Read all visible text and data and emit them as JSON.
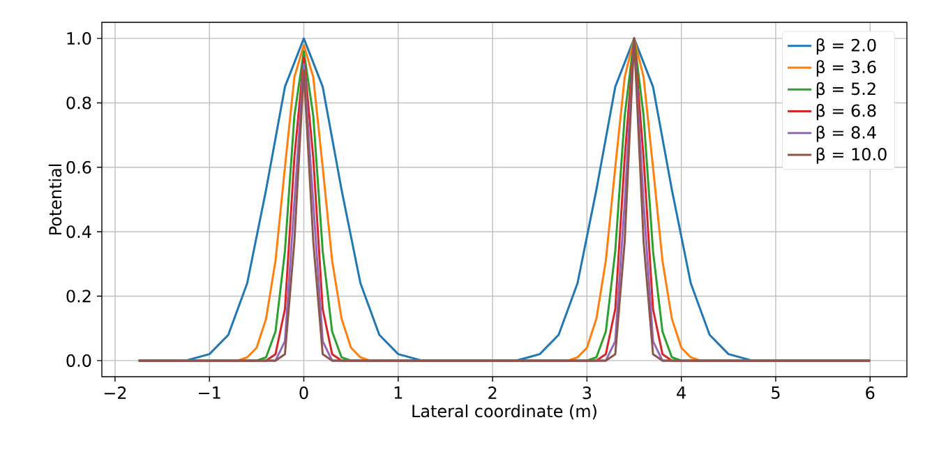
{
  "chart_data": {
    "type": "line",
    "xlabel": "Lateral coordinate (m)",
    "ylabel": "Potential",
    "xlim": [
      -2.14,
      6.39
    ],
    "ylim": [
      -0.05,
      1.05
    ],
    "xticks": [
      {
        "value": -2,
        "label": "−2"
      },
      {
        "value": -1,
        "label": "−1"
      },
      0,
      1,
      2,
      3,
      4,
      5,
      6
    ],
    "yticks": [
      {
        "value": 0,
        "label": "0.0"
      },
      {
        "value": 0.2,
        "label": "0.2"
      },
      {
        "value": 0.4,
        "label": "0.4"
      },
      {
        "value": 0.6,
        "label": "0.6"
      },
      {
        "value": 0.8,
        "label": "0.8"
      },
      {
        "value": 1.0,
        "label": "1.0"
      }
    ],
    "grid": true,
    "legend": "top right",
    "marker": "none",
    "line_style": "solid",
    "series": [
      {
        "name": "β = 2.0",
        "color": "#1f77b4",
        "x": [
          -1.75,
          -1.25,
          -1.0,
          -0.8,
          -0.6,
          -0.4,
          -0.2,
          0,
          0.2,
          0.4,
          0.6,
          0.8,
          1.0,
          1.25,
          2.25,
          2.5,
          2.7,
          2.9,
          3.1,
          3.3,
          3.5,
          3.7,
          3.9,
          4.1,
          4.3,
          4.5,
          4.75,
          6
        ],
        "values": [
          0,
          0,
          0.02,
          0.08,
          0.24,
          0.53,
          0.85,
          1.0,
          0.85,
          0.53,
          0.24,
          0.08,
          0.02,
          0,
          0,
          0.02,
          0.08,
          0.24,
          0.53,
          0.85,
          1.0,
          0.85,
          0.53,
          0.24,
          0.08,
          0.02,
          0,
          0
        ]
      },
      {
        "name": "β = 3.6",
        "color": "#ff7f0e",
        "x": [
          -1.75,
          -0.7,
          -0.6,
          -0.5,
          -0.4,
          -0.3,
          -0.2,
          -0.1,
          0,
          0.1,
          0.2,
          0.3,
          0.4,
          0.5,
          0.6,
          0.7,
          2.8,
          2.9,
          3.0,
          3.1,
          3.2,
          3.3,
          3.4,
          3.5,
          3.6,
          3.7,
          3.8,
          3.9,
          4.0,
          4.1,
          4.2,
          6
        ],
        "values": [
          0,
          0,
          0.01,
          0.04,
          0.13,
          0.31,
          0.6,
          0.88,
          0.98,
          0.88,
          0.6,
          0.31,
          0.13,
          0.04,
          0.01,
          0,
          0,
          0.01,
          0.04,
          0.13,
          0.31,
          0.6,
          0.88,
          1.0,
          0.88,
          0.6,
          0.31,
          0.13,
          0.04,
          0.01,
          0,
          0
        ]
      },
      {
        "name": "β = 5.2",
        "color": "#2ca02c",
        "x": [
          -1.75,
          -0.5,
          -0.4,
          -0.3,
          -0.2,
          -0.1,
          0,
          0.1,
          0.2,
          0.3,
          0.4,
          0.5,
          3.0,
          3.1,
          3.2,
          3.3,
          3.4,
          3.5,
          3.6,
          3.7,
          3.8,
          3.9,
          4.0,
          6
        ],
        "values": [
          0,
          0,
          0.01,
          0.09,
          0.34,
          0.76,
          0.96,
          0.76,
          0.34,
          0.09,
          0.01,
          0,
          0,
          0.01,
          0.09,
          0.34,
          0.76,
          1.0,
          0.76,
          0.34,
          0.09,
          0.01,
          0,
          0
        ]
      },
      {
        "name": "β = 6.8",
        "color": "#d62728",
        "x": [
          -1.75,
          -0.4,
          -0.3,
          -0.2,
          -0.1,
          0,
          0.1,
          0.2,
          0.3,
          0.4,
          3.1,
          3.2,
          3.3,
          3.4,
          3.5,
          3.6,
          3.7,
          3.8,
          3.9,
          6
        ],
        "values": [
          0,
          0,
          0.02,
          0.16,
          0.63,
          0.94,
          0.63,
          0.16,
          0.02,
          0,
          0,
          0.02,
          0.16,
          0.63,
          1.0,
          0.63,
          0.16,
          0.02,
          0,
          0
        ]
      },
      {
        "name": "β = 8.4",
        "color": "#9467bd",
        "x": [
          -1.75,
          -0.3,
          -0.2,
          -0.1,
          0,
          0.1,
          0.2,
          0.3,
          3.2,
          3.3,
          3.4,
          3.5,
          3.6,
          3.7,
          3.8,
          6
        ],
        "values": [
          0,
          0,
          0.06,
          0.49,
          0.92,
          0.49,
          0.06,
          0,
          0,
          0.06,
          0.49,
          1.0,
          0.49,
          0.06,
          0,
          0
        ]
      },
      {
        "name": "β = 10.0",
        "color": "#8c564b",
        "x": [
          -1.75,
          -0.3,
          -0.2,
          -0.1,
          0,
          0.1,
          0.2,
          0.3,
          3.2,
          3.3,
          3.4,
          3.5,
          3.6,
          3.7,
          3.8,
          6
        ],
        "values": [
          0,
          0,
          0.02,
          0.37,
          0.9,
          0.37,
          0.02,
          0,
          0,
          0.02,
          0.37,
          1.0,
          0.37,
          0.02,
          0,
          0
        ]
      }
    ]
  }
}
